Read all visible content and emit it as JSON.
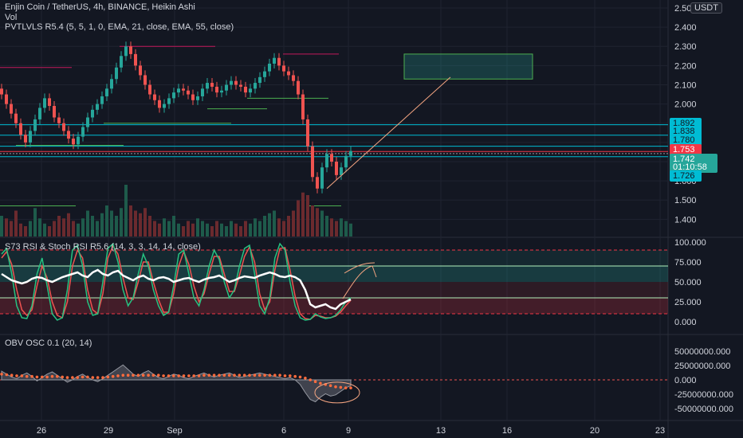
{
  "header": {
    "title": "Enjin Coin / TetherUS, 4h, BINANCE, Heikin Ashi",
    "vol": "Vol",
    "indicator": "PVTLVLS R5.4 (5, 5, 1, 0, EMA, 21, close, EMA, 55, close)"
  },
  "currency": "USDT",
  "price_badges": [
    {
      "label": "1.892",
      "bg": "#00bcd4"
    },
    {
      "label": "1.838",
      "bg": "#00bcd4"
    },
    {
      "label": "1.780",
      "bg": "#00bcd4"
    },
    {
      "label": "1.753",
      "bg": "#f23645"
    },
    {
      "label": "1.742",
      "bg": "#26a69a"
    },
    {
      "label": "01:10:58",
      "bg": "#26a69a"
    },
    {
      "label": "1.726",
      "bg": "#00bcd4"
    }
  ],
  "colors": {
    "up": "#26a69a",
    "down": "#ef5350",
    "cyan": "#00bcd4",
    "ema": "#e0e0e0",
    "obv": "#ff6b3d"
  },
  "chart_data": [
    {
      "type": "candlestick",
      "title": "Enjin Coin / TetherUS, 4h, BINANCE, Heikin Ashi",
      "x_ticks": [
        "26",
        "29",
        "Sep",
        "6",
        "9",
        "13",
        "16",
        "20",
        "23"
      ],
      "y_ticks": [
        "2.500",
        "2.400",
        "2.300",
        "2.200",
        "2.100",
        "2.000",
        "1.900",
        "1.800",
        "1.700",
        "1.600",
        "1.500",
        "1.400"
      ],
      "ylim": [
        1.36,
        2.5
      ],
      "closes": [
        2.05,
        2.0,
        1.95,
        1.9,
        1.84,
        1.8,
        1.86,
        1.92,
        1.98,
        2.03,
        1.99,
        1.93,
        1.9,
        1.86,
        1.82,
        1.79,
        1.83,
        1.88,
        1.93,
        1.97,
        2.0,
        2.04,
        2.08,
        2.13,
        2.19,
        2.25,
        2.3,
        2.26,
        2.2,
        2.15,
        2.1,
        2.05,
        2.02,
        1.98,
        2.0,
        2.03,
        2.06,
        2.08,
        2.07,
        2.05,
        2.02,
        2.04,
        2.08,
        2.11,
        2.09,
        2.06,
        2.07,
        2.1,
        2.12,
        2.1,
        2.09,
        2.06,
        2.08,
        2.11,
        2.14,
        2.17,
        2.21,
        2.24,
        2.2,
        2.17,
        2.15,
        2.12,
        2.05,
        1.92,
        1.78,
        1.62,
        1.56,
        1.67,
        1.74,
        1.7,
        1.63,
        1.67,
        1.73,
        1.755
      ],
      "horizontal_levels": [
        1.892,
        1.838,
        1.78,
        1.753,
        1.742,
        1.726
      ],
      "volume": [
        0.4,
        0.35,
        0.3,
        0.5,
        0.25,
        0.2,
        0.3,
        0.55,
        0.35,
        0.25,
        0.2,
        0.3,
        0.4,
        0.35,
        0.45,
        0.3,
        0.25,
        0.35,
        0.5,
        0.4,
        0.3,
        0.45,
        0.6,
        0.5,
        0.4,
        0.55,
        1.0,
        0.6,
        0.5,
        0.45,
        0.55,
        0.4,
        0.3,
        0.25,
        0.35,
        0.3,
        0.4,
        0.25,
        0.2,
        0.3,
        0.25,
        0.35,
        0.3,
        0.25,
        0.2,
        0.3,
        0.25,
        0.2,
        0.3,
        0.25,
        0.2,
        0.3,
        0.25,
        0.35,
        0.3,
        0.4,
        0.45,
        0.5,
        0.35,
        0.3,
        0.4,
        0.5,
        0.7,
        0.85,
        0.8,
        0.6,
        0.55,
        0.5,
        0.4,
        0.35,
        0.3,
        0.35,
        0.3,
        0.25
      ]
    },
    {
      "type": "line",
      "title": "S73 RSI & Stoch RSI R5.6 (14, 3, 3, 14, 14, close)",
      "y_ticks": [
        "100.000",
        "75.000",
        "50.000",
        "25.000",
        "0.000"
      ],
      "ylim": [
        0,
        100
      ],
      "rsi": [
        60,
        56,
        52,
        50,
        48,
        50,
        54,
        56,
        55,
        52,
        50,
        53,
        56,
        58,
        60,
        62,
        58,
        56,
        62,
        65,
        60,
        58,
        62,
        64,
        58,
        55,
        52,
        56,
        58,
        54,
        52,
        55,
        56,
        54,
        50,
        52,
        54,
        55,
        52,
        50,
        53,
        55,
        56,
        58,
        54,
        50,
        52,
        55,
        57,
        56,
        55,
        58,
        60,
        62,
        60,
        57,
        56,
        58,
        56,
        52,
        40,
        22,
        18,
        20,
        22,
        18,
        16,
        22,
        25,
        28
      ],
      "stoch_k": [
        85,
        92,
        60,
        20,
        5,
        4,
        20,
        60,
        80,
        45,
        10,
        2,
        5,
        40,
        90,
        96,
        70,
        25,
        8,
        10,
        50,
        92,
        98,
        75,
        40,
        20,
        30,
        60,
        85,
        70,
        40,
        20,
        8,
        12,
        45,
        85,
        90,
        60,
        30,
        20,
        40,
        70,
        90,
        78,
        50,
        30,
        40,
        70,
        92,
        96,
        60,
        20,
        10,
        30,
        80,
        98,
        90,
        50,
        20,
        5,
        2,
        3,
        10,
        6,
        4,
        5,
        8,
        15,
        25,
        30
      ],
      "stoch_d": [
        80,
        88,
        72,
        40,
        15,
        8,
        15,
        45,
        70,
        55,
        25,
        8,
        5,
        25,
        70,
        90,
        80,
        40,
        15,
        10,
        35,
        80,
        95,
        85,
        55,
        30,
        28,
        50,
        75,
        75,
        50,
        28,
        12,
        12,
        35,
        70,
        88,
        72,
        45,
        25,
        35,
        60,
        82,
        82,
        60,
        38,
        38,
        58,
        82,
        94,
        75,
        35,
        15,
        25,
        65,
        92,
        93,
        65,
        32,
        10,
        4,
        3,
        8,
        7,
        5,
        5,
        7,
        12,
        20,
        27
      ]
    },
    {
      "type": "area",
      "title": "OBV OSC 0.1 (20, 14)",
      "y_ticks": [
        "50000000.000",
        "25000000.000",
        "0.000",
        "-25000000.000",
        "-50000000.000"
      ],
      "ylim": [
        -58000000,
        58000000
      ],
      "values": [
        15,
        10,
        5,
        2,
        8,
        12,
        6,
        -2,
        4,
        10,
        14,
        8,
        2,
        -4,
        0,
        6,
        10,
        4,
        0,
        -3,
        2,
        8,
        14,
        20,
        26,
        18,
        10,
        6,
        12,
        16,
        10,
        4,
        2,
        6,
        10,
        8,
        4,
        2,
        6,
        9,
        12,
        8,
        5,
        8,
        10,
        12,
        8,
        4,
        6,
        8,
        10,
        12,
        10,
        8,
        6,
        4,
        2,
        4,
        0,
        -8,
        -22,
        -34,
        -38,
        -30,
        -24,
        -28,
        -26,
        -20,
        -14,
        -10
      ],
      "signal": [
        10,
        9,
        8,
        7,
        7,
        6,
        6,
        5,
        5,
        5,
        6,
        6,
        5,
        4,
        4,
        4,
        5,
        5,
        4,
        4,
        4,
        5,
        6,
        7,
        8,
        8,
        8,
        8,
        8,
        8,
        8,
        8,
        7,
        7,
        7,
        7,
        7,
        7,
        7,
        7,
        8,
        8,
        8,
        8,
        8,
        8,
        8,
        8,
        8,
        8,
        8,
        8,
        8,
        8,
        8,
        8,
        7,
        7,
        6,
        5,
        3,
        0,
        -3,
        -6,
        -8,
        -10,
        -12,
        -13,
        -14,
        -14
      ]
    }
  ]
}
